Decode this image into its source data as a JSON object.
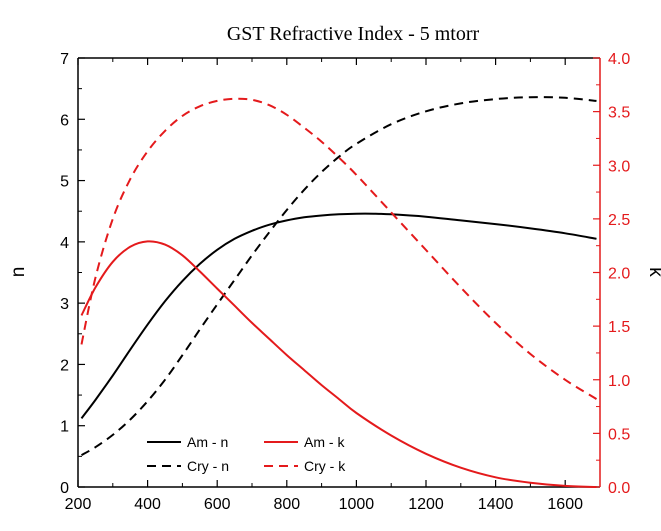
{
  "colors": {
    "black": "#000000",
    "red": "#e41a1c"
  },
  "chart_data": {
    "type": "line",
    "title": "GST Refractive Index - 5 mtorr",
    "xlabel": "",
    "ylabel": "n",
    "y2label": "k",
    "xlim": [
      200,
      1700
    ],
    "ylim": [
      0,
      7
    ],
    "y2lim": [
      0,
      4
    ],
    "xticks": [
      200,
      400,
      600,
      800,
      1000,
      1200,
      1400,
      1600
    ],
    "yticks": [
      0,
      1,
      2,
      3,
      4,
      5,
      6,
      7
    ],
    "y2ticks": [
      "0.0",
      "0.5",
      "1.0",
      "1.5",
      "2.0",
      "2.5",
      "3.0",
      "3.5",
      "4.0"
    ],
    "grid": false,
    "legend_position": "bottom-left",
    "series": [
      {
        "name": "Am - n",
        "axis": "left",
        "color": "#000000",
        "dash": "solid",
        "x": [
          210,
          250,
          300,
          350,
          400,
          450,
          500,
          550,
          600,
          650,
          700,
          750,
          800,
          850,
          900,
          950,
          1000,
          1050,
          1100,
          1200,
          1300,
          1400,
          1500,
          1600,
          1690
        ],
        "y": [
          1.12,
          1.42,
          1.82,
          2.24,
          2.65,
          3.03,
          3.36,
          3.64,
          3.87,
          4.05,
          4.18,
          4.28,
          4.35,
          4.4,
          4.43,
          4.45,
          4.46,
          4.46,
          4.45,
          4.41,
          4.35,
          4.29,
          4.22,
          4.14,
          4.05
        ]
      },
      {
        "name": "Cry - n",
        "axis": "left",
        "color": "#000000",
        "dash": "dashed",
        "x": [
          210,
          250,
          300,
          350,
          400,
          450,
          500,
          550,
          600,
          650,
          700,
          750,
          800,
          850,
          900,
          950,
          1000,
          1100,
          1200,
          1300,
          1400,
          1500,
          1600,
          1690
        ],
        "y": [
          0.52,
          0.65,
          0.85,
          1.1,
          1.4,
          1.75,
          2.15,
          2.57,
          2.98,
          3.38,
          3.78,
          4.16,
          4.52,
          4.85,
          5.14,
          5.39,
          5.6,
          5.92,
          6.13,
          6.26,
          6.33,
          6.36,
          6.35,
          6.3
        ]
      },
      {
        "name": "Am - k",
        "axis": "right",
        "color": "#e41a1c",
        "dash": "solid",
        "x": [
          210,
          250,
          300,
          350,
          400,
          450,
          500,
          550,
          600,
          650,
          700,
          750,
          800,
          850,
          900,
          950,
          1000,
          1100,
          1200,
          1300,
          1400,
          1500,
          1600,
          1690
        ],
        "y": [
          1.6,
          1.86,
          2.1,
          2.24,
          2.29,
          2.26,
          2.16,
          2.01,
          1.85,
          1.69,
          1.53,
          1.38,
          1.23,
          1.09,
          0.95,
          0.82,
          0.69,
          0.48,
          0.31,
          0.18,
          0.09,
          0.04,
          0.01,
          0.0
        ]
      },
      {
        "name": "Cry - k",
        "axis": "right",
        "color": "#e41a1c",
        "dash": "dashed",
        "x": [
          210,
          250,
          300,
          350,
          400,
          450,
          500,
          550,
          600,
          650,
          700,
          750,
          800,
          850,
          900,
          950,
          1000,
          1100,
          1200,
          1300,
          1400,
          1500,
          1600,
          1690
        ],
        "y": [
          1.33,
          1.95,
          2.5,
          2.87,
          3.13,
          3.32,
          3.46,
          3.55,
          3.6,
          3.62,
          3.61,
          3.56,
          3.47,
          3.35,
          3.22,
          3.07,
          2.91,
          2.56,
          2.21,
          1.86,
          1.53,
          1.24,
          1.0,
          0.82
        ]
      }
    ]
  }
}
